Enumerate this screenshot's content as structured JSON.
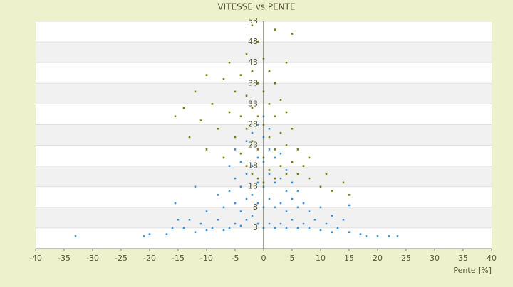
{
  "chart_data": {
    "type": "scatter",
    "title": "VITESSE vs PENTE",
    "x_label": "Pente [%]",
    "xlim": [
      -40,
      40
    ],
    "xticks": [
      -40,
      -35,
      -30,
      -25,
      -20,
      -15,
      -10,
      -5,
      0,
      5,
      10,
      15,
      20,
      25,
      30,
      35,
      40
    ],
    "ylim": [
      -2,
      53
    ],
    "yticks": [
      3,
      8,
      13,
      18,
      23,
      28,
      33,
      38,
      43,
      48,
      53
    ],
    "grid": true,
    "series": [
      {
        "color": "#3a8fd6",
        "x": [
          -33,
          -21,
          -20,
          -17,
          -16,
          -15,
          -15.5,
          -14,
          -13,
          -12,
          -12,
          -11,
          -10,
          -10,
          -9,
          -8,
          -8,
          -7,
          -7,
          -6,
          -6,
          -6,
          -5,
          -5,
          -5,
          -5,
          -4,
          -4,
          -4,
          -4,
          -3,
          -3,
          -3,
          -3,
          -2,
          -2,
          -2,
          -2,
          -1,
          -1,
          -1,
          -1,
          -1,
          0,
          0,
          0,
          0,
          0,
          0,
          1,
          1,
          1,
          1,
          1,
          2,
          2,
          2,
          2,
          3,
          3,
          3,
          3,
          4,
          4,
          4,
          4,
          5,
          5,
          5,
          6,
          6,
          6,
          7,
          7,
          8,
          8,
          9,
          10,
          10,
          11,
          12,
          12,
          13,
          14,
          15,
          15,
          17,
          18,
          20,
          22,
          23.5
        ],
        "values": [
          1,
          1,
          1.5,
          1.5,
          3,
          5,
          9,
          3,
          5,
          2,
          13,
          4,
          2.5,
          7,
          3,
          5,
          11,
          2.5,
          8,
          3,
          12,
          18,
          4,
          9,
          15,
          22,
          3.5,
          7,
          13,
          19,
          5,
          10,
          16,
          24,
          6,
          11,
          18,
          26,
          4,
          9,
          14,
          20,
          28,
          3,
          8,
          13,
          19,
          25,
          30,
          4,
          10,
          16,
          22,
          27,
          3,
          8,
          14,
          20,
          4,
          9,
          15,
          21,
          3,
          7,
          12,
          17,
          5,
          10,
          14,
          3,
          8,
          12,
          4,
          9,
          3,
          7,
          5,
          2.5,
          8,
          4,
          2,
          6,
          3,
          5,
          2,
          8.5,
          1.5,
          1,
          1,
          1,
          1
        ]
      },
      {
        "color": "#7a7a10",
        "x": [
          -15.5,
          -14,
          -13,
          -12,
          -11,
          -10,
          -10,
          -9,
          -8,
          -7,
          -7,
          -6,
          -6,
          -5,
          -5,
          -4,
          -4,
          -4,
          -3,
          -3,
          -3,
          -3,
          -2,
          -2,
          -2,
          -2,
          -2,
          -1,
          -1,
          -1,
          -1,
          -1,
          0,
          0,
          0,
          0,
          0,
          1,
          1,
          1,
          1,
          2,
          2,
          2,
          2,
          2,
          3,
          3,
          3,
          4,
          4,
          4,
          4,
          5,
          5,
          5,
          6,
          6,
          7,
          8,
          8,
          10,
          11,
          12,
          14,
          15
        ],
        "values": [
          30,
          32,
          25,
          36,
          29,
          40,
          22,
          33,
          27,
          39,
          20,
          31,
          43,
          25,
          36,
          21,
          30,
          40,
          18,
          27,
          35,
          45,
          16,
          24,
          32,
          41,
          52,
          15,
          22,
          30,
          38,
          48,
          14,
          20,
          28,
          36,
          44,
          17,
          25,
          33,
          41,
          15,
          22,
          30,
          38,
          51,
          18,
          26,
          34,
          16,
          23,
          31,
          43,
          19,
          27,
          50,
          16,
          22,
          18,
          15,
          20,
          13,
          16,
          12,
          14,
          11
        ]
      }
    ]
  }
}
